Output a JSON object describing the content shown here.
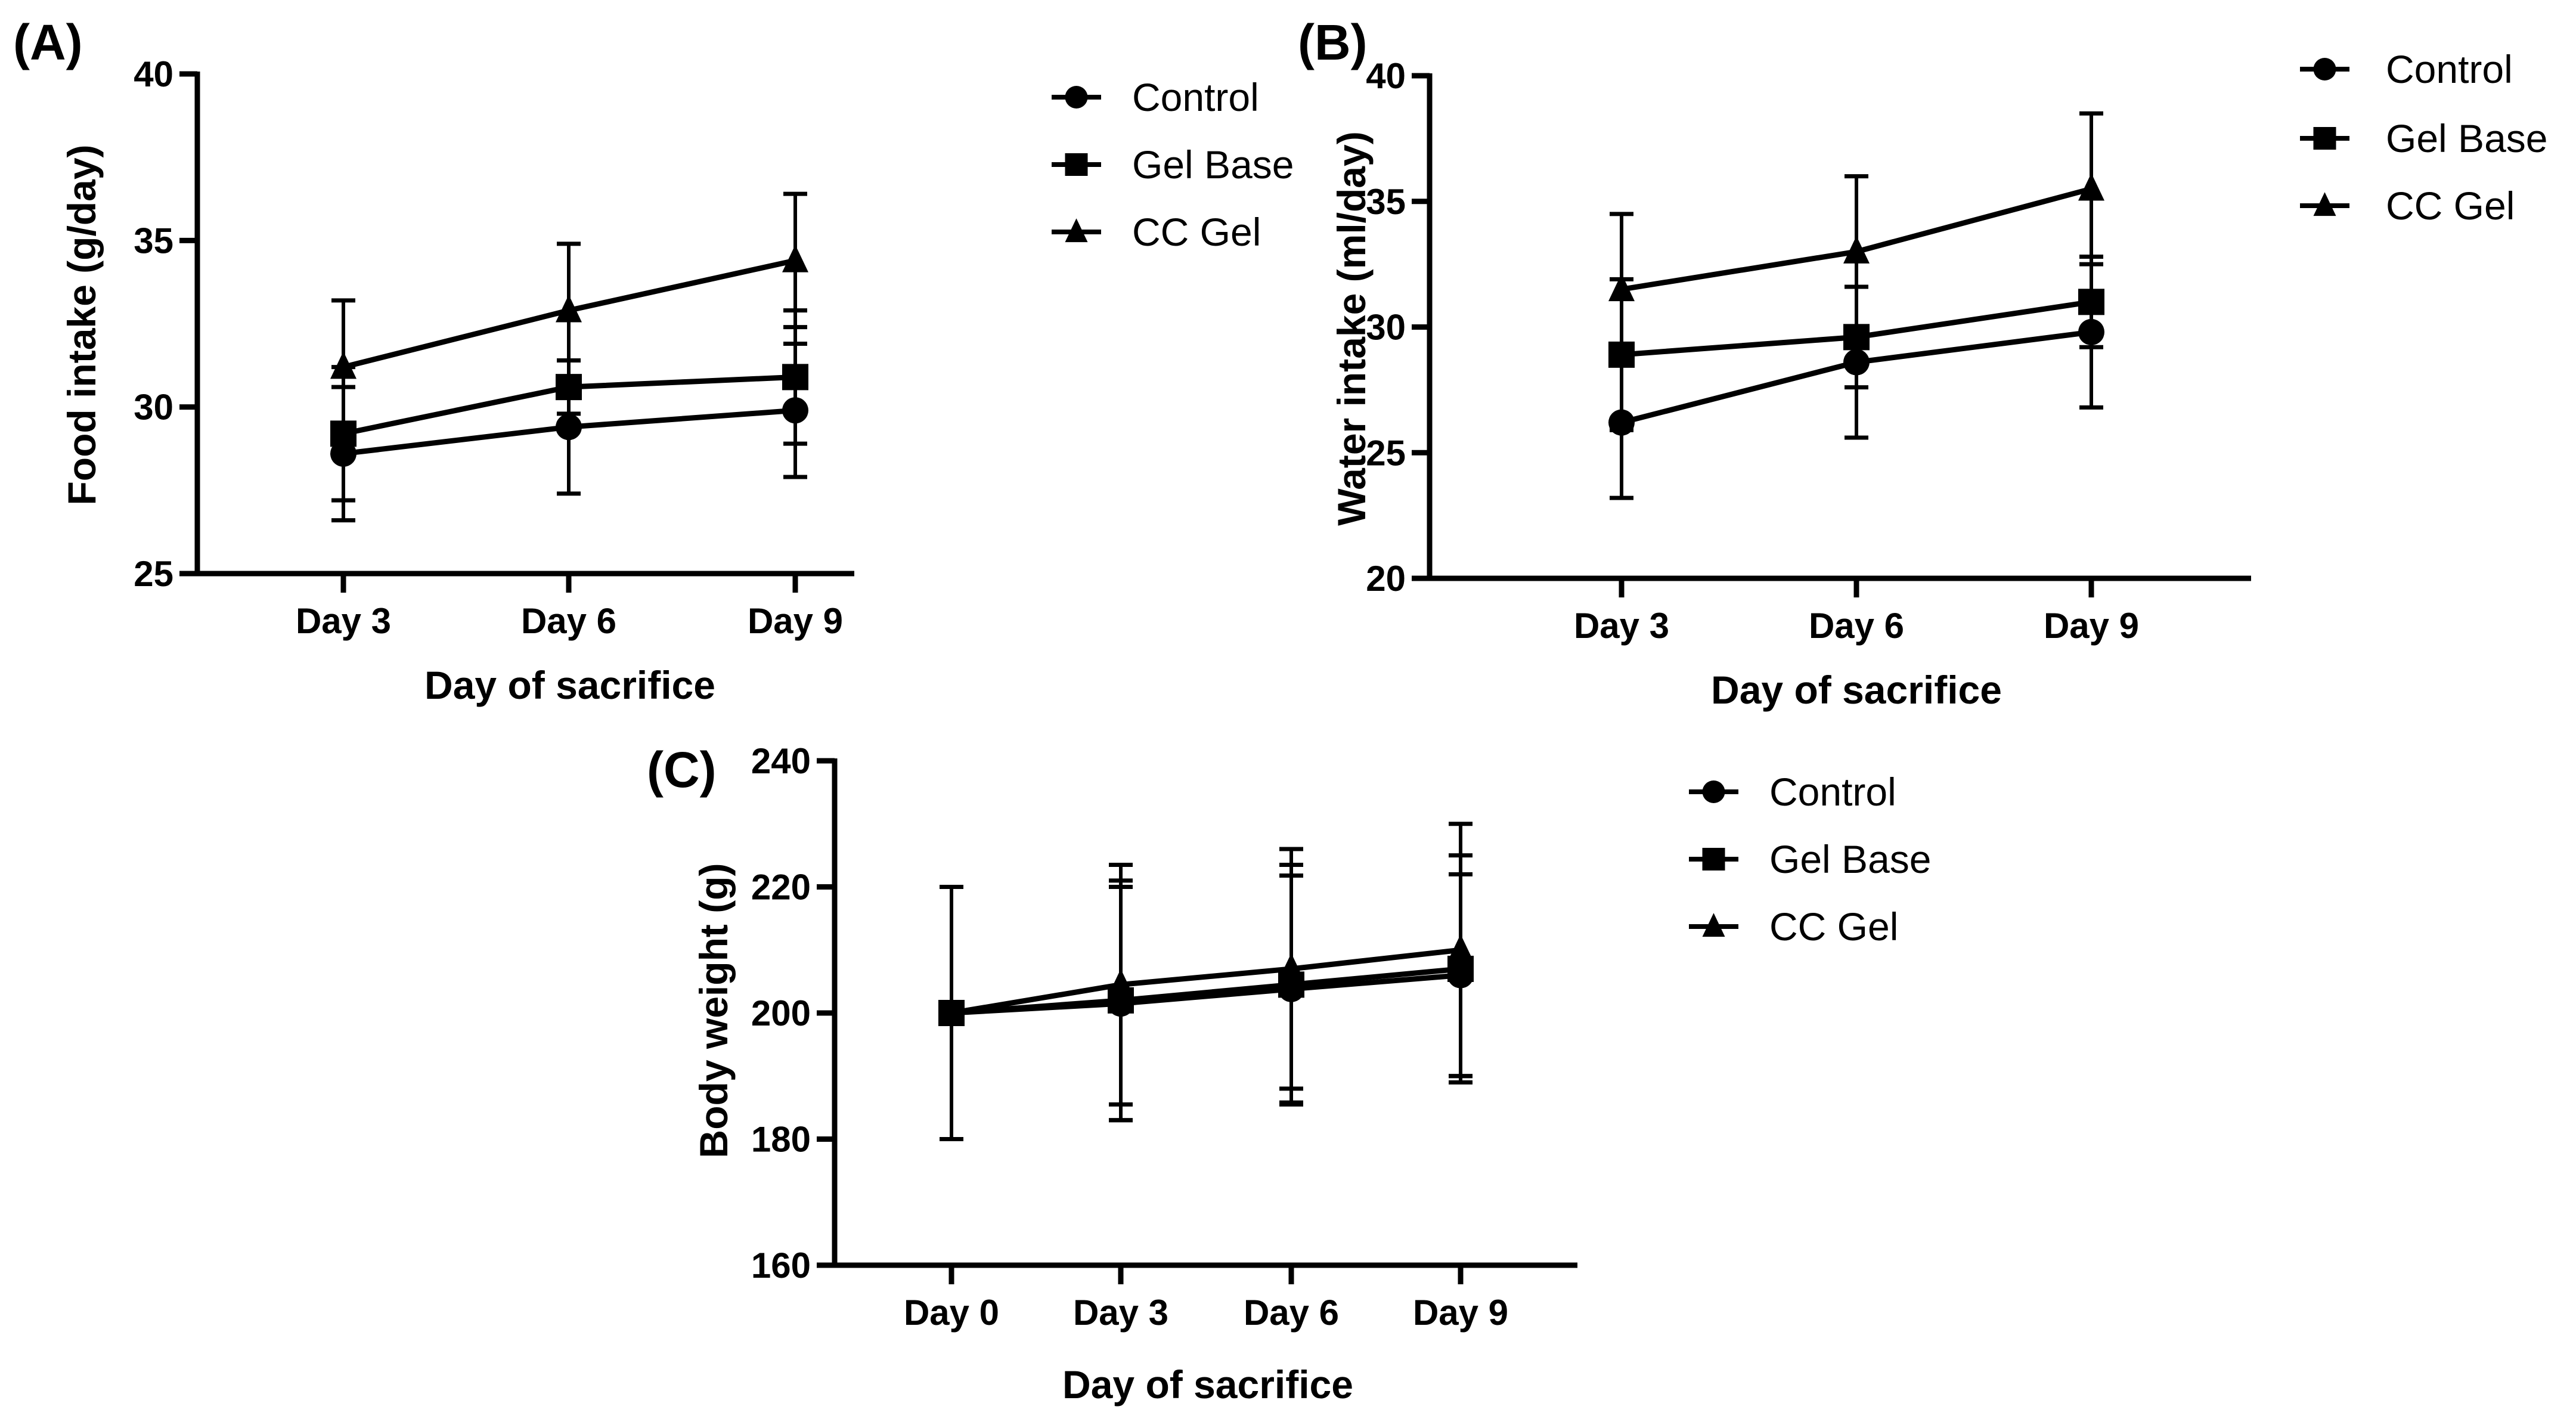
{
  "chart_data": [
    {
      "type": "line",
      "panel_label": "(A)",
      "xlabel": "Day of sacrifice",
      "ylabel": "Food intake (g/day)",
      "categories": [
        "Day 3",
        "Day 6",
        "Day 9"
      ],
      "ylim": [
        25,
        40
      ],
      "yticks": [
        25,
        30,
        35,
        40
      ],
      "legend_position": "top-right",
      "series": [
        {
          "name": "Control",
          "marker": "circle",
          "values": [
            28.6,
            29.4,
            29.9
          ],
          "error": [
            2.0,
            2.0,
            2.0
          ]
        },
        {
          "name": "Gel Base",
          "marker": "square",
          "values": [
            29.2,
            30.6,
            30.9
          ],
          "error": [
            2.0,
            0.8,
            2.0
          ]
        },
        {
          "name": "CC Gel",
          "marker": "triangle",
          "values": [
            31.2,
            32.9,
            34.4
          ],
          "error": [
            2.0,
            2.0,
            2.0
          ]
        }
      ]
    },
    {
      "type": "line",
      "panel_label": "(B)",
      "xlabel": "Day of sacrifice",
      "ylabel": "Water intake (ml/day)",
      "categories": [
        "Day 3",
        "Day 6",
        "Day 9"
      ],
      "ylim": [
        20,
        40
      ],
      "yticks": [
        20,
        25,
        30,
        35,
        40
      ],
      "legend_position": "top-right",
      "series": [
        {
          "name": "Control",
          "marker": "circle",
          "values": [
            26.2,
            28.6,
            29.8
          ],
          "error": [
            3.0,
            3.0,
            3.0
          ]
        },
        {
          "name": "Gel Base",
          "marker": "square",
          "values": [
            28.9,
            29.6,
            31.0
          ],
          "error": [
            3.0,
            2.0,
            1.8
          ]
        },
        {
          "name": "CC Gel",
          "marker": "triangle",
          "values": [
            31.5,
            33.0,
            35.5
          ],
          "error": [
            3.0,
            3.0,
            3.0
          ]
        }
      ]
    },
    {
      "type": "line",
      "panel_label": "(C)",
      "xlabel": "Day of sacrifice",
      "ylabel": "Body weight (g)",
      "categories": [
        "Day 0",
        "Day 3",
        "Day 6",
        "Day 9"
      ],
      "ylim": [
        160,
        240
      ],
      "yticks": [
        160,
        180,
        200,
        220,
        240
      ],
      "legend_position": "top-right",
      "series": [
        {
          "name": "Control",
          "marker": "circle",
          "values": [
            200,
            201.5,
            203.8,
            206
          ],
          "error": [
            20,
            18.5,
            18,
            16
          ]
        },
        {
          "name": "Gel Base",
          "marker": "square",
          "values": [
            200,
            202,
            204.5,
            207
          ],
          "error": [
            20,
            19,
            19,
            18
          ]
        },
        {
          "name": "CC Gel",
          "marker": "triangle",
          "values": [
            200,
            204.5,
            207,
            210
          ],
          "error": [
            20,
            19,
            19,
            20
          ]
        }
      ]
    }
  ]
}
